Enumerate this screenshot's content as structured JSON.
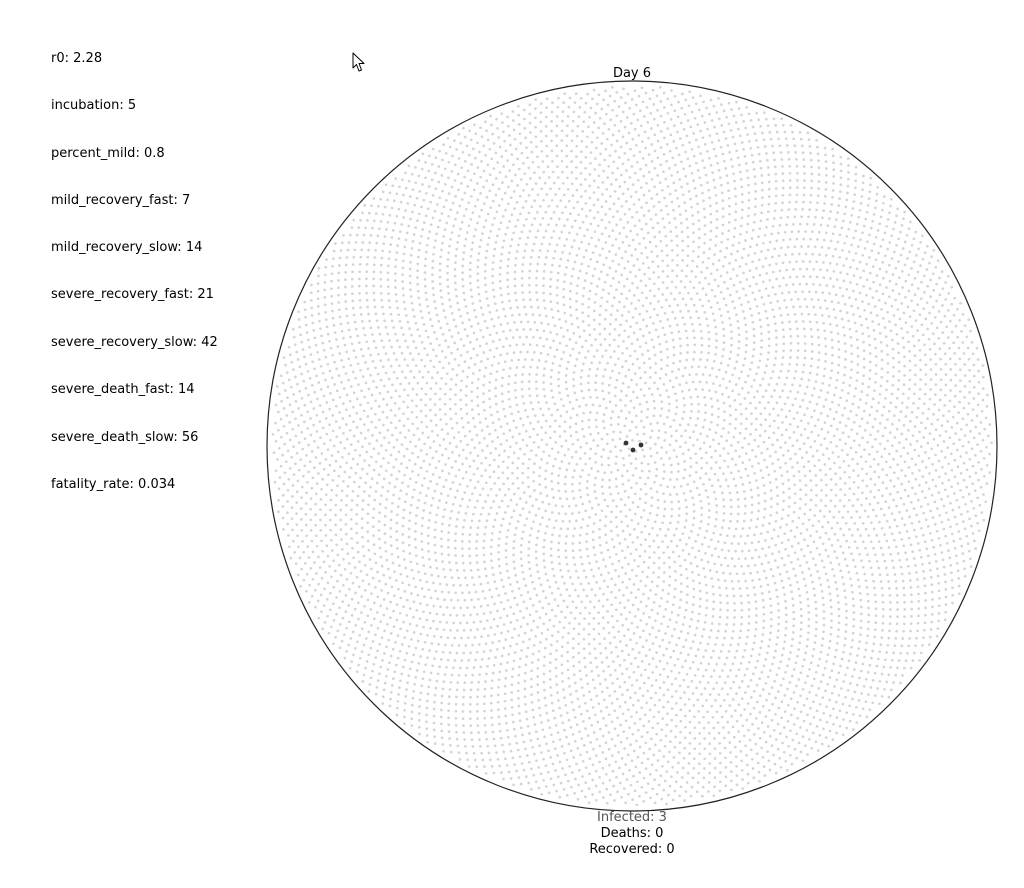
{
  "parameters": [
    {
      "key": "r0",
      "value": "2.28"
    },
    {
      "key": "incubation",
      "value": "5"
    },
    {
      "key": "percent_mild",
      "value": "0.8"
    },
    {
      "key": "mild_recovery_fast",
      "value": "7"
    },
    {
      "key": "mild_recovery_slow",
      "value": "14"
    },
    {
      "key": "severe_recovery_fast",
      "value": "21"
    },
    {
      "key": "severe_recovery_slow",
      "value": "42"
    },
    {
      "key": "severe_death_fast",
      "value": "14"
    },
    {
      "key": "severe_death_slow",
      "value": "56"
    },
    {
      "key": "fatality_rate",
      "value": "0.034"
    }
  ],
  "day_label": "Day 6",
  "stats": {
    "infected": "Infected: 3",
    "deaths": "Deaths: 0",
    "recovered": "Recovered: 0"
  },
  "colors": {
    "healthy": "#d4d4d4",
    "infected": "#333333",
    "ring": "#222222",
    "infected_label": "#555555"
  }
}
